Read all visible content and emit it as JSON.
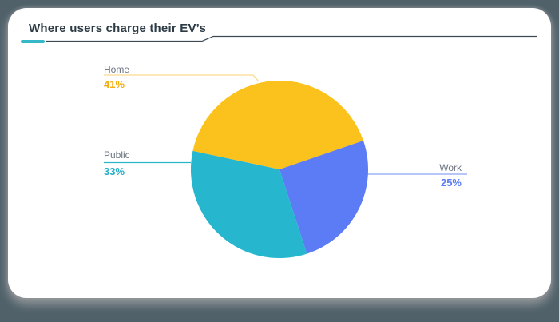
{
  "page": {
    "background_color": "#50616a"
  },
  "card": {
    "title": "Where users charge their EV’s",
    "accent_color": "#35b8c8",
    "header_line_color": "#3d4a54"
  },
  "chart_data": {
    "type": "pie",
    "title": "Where users charge their EV’s",
    "legend_position": "callout-labels",
    "start_angle_deg": 168,
    "clockwise": true,
    "series": [
      {
        "name": "Home",
        "value": 41,
        "pct_label": "41%",
        "color": "#fbc21d",
        "leader_color": "#fbd98d",
        "pct_color": "#f2ae0d",
        "label_side": "left"
      },
      {
        "name": "Work",
        "value": 25,
        "pct_label": "25%",
        "color": "#5b7cf5",
        "leader_color": "#8aa3f5",
        "pct_color": "#5b7cf5",
        "label_side": "right"
      },
      {
        "name": "Public",
        "value": 33,
        "pct_label": "33%",
        "color": "#26b6ce",
        "leader_color": "#2ab8c9",
        "pct_color": "#24aec6",
        "label_side": "left"
      }
    ]
  }
}
